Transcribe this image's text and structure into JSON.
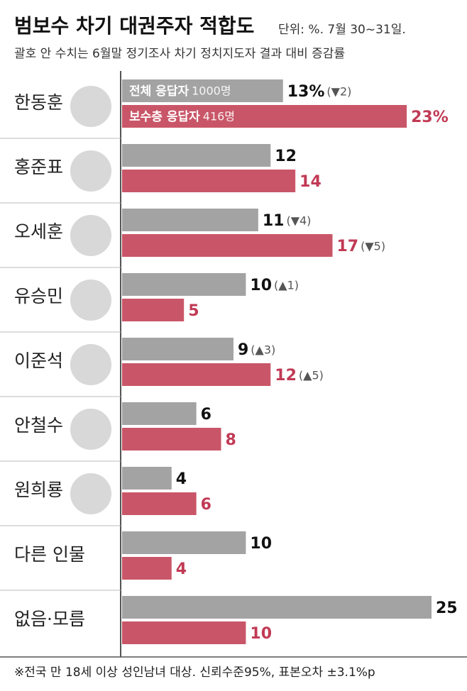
{
  "chart_data": {
    "type": "bar",
    "orientation": "horizontal",
    "title": "범보수 차기 대권주자 적합도",
    "unit_note": "단위: %. 7월 30~31일.",
    "subtitle": "괄호 안 수치는 6월말 정기조사 차기 정치지도자 결과 대비 증감률",
    "footnote": "※전국 만 18세 이상 성인남녀 대상. 신뢰수준95%, 표본오차 ±3.1%p",
    "categories": [
      "한동훈",
      "홍준표",
      "오세훈",
      "유승민",
      "이준석",
      "안철수",
      "원희룡",
      "다른 인물",
      "없음·모름"
    ],
    "xlim": [
      0,
      25
    ],
    "series": [
      {
        "name": "전체 응답자",
        "sample": "1000명",
        "color": "#a3a3a3",
        "label_color": "#111111",
        "values": [
          13,
          12,
          11,
          10,
          9,
          6,
          4,
          10,
          25
        ],
        "value_labels": [
          "13%",
          null,
          null,
          null,
          null,
          null,
          null,
          null,
          null
        ],
        "changes": [
          "(▼2)",
          null,
          "(▼4)",
          "(▲1)",
          "(▲3)",
          null,
          null,
          null,
          null
        ]
      },
      {
        "name": "보수층 응답자",
        "sample": "416명",
        "color": "#c95668",
        "label_color": "#c13a55",
        "values": [
          23,
          14,
          17,
          5,
          12,
          8,
          6,
          4,
          10
        ],
        "value_labels": [
          "23%",
          null,
          null,
          null,
          null,
          null,
          null,
          null,
          null
        ],
        "changes": [
          null,
          null,
          "(▼5)",
          null,
          "(▲5)",
          null,
          null,
          null,
          null
        ]
      }
    ]
  }
}
